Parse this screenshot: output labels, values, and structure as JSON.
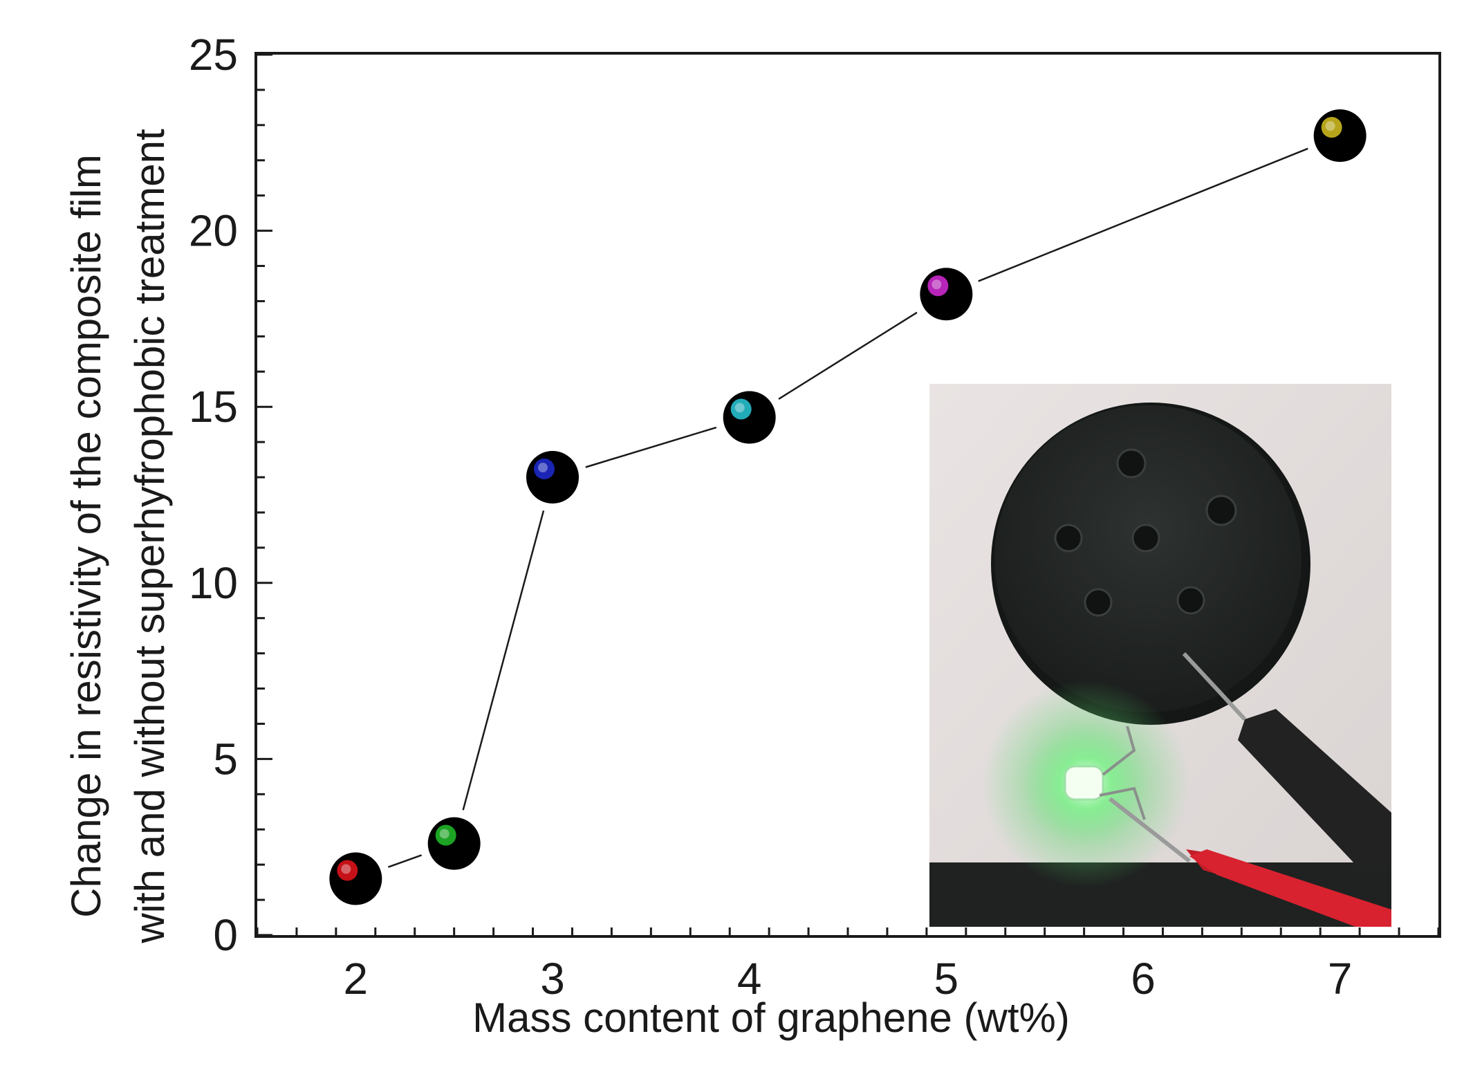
{
  "chart_data": {
    "type": "scatter",
    "connected": true,
    "xlabel": "Mass content of graphene (wt%)",
    "ylabel_lines": [
      "Change in resistivity of the composite film",
      "with and without superhyfrophobic treatment"
    ],
    "xlim": [
      1.5,
      7.5
    ],
    "ylim": [
      0,
      25
    ],
    "xticks": [
      2,
      3,
      4,
      5,
      6,
      7
    ],
    "yticks": [
      0,
      5,
      10,
      15,
      20,
      25
    ],
    "points": [
      {
        "x": 2.0,
        "y": 1.6,
        "highlight": "#e8141b"
      },
      {
        "x": 2.5,
        "y": 2.6,
        "highlight": "#22c02a"
      },
      {
        "x": 3.0,
        "y": 13.0,
        "highlight": "#1f2bd6"
      },
      {
        "x": 4.0,
        "y": 14.7,
        "highlight": "#28c9d8"
      },
      {
        "x": 5.0,
        "y": 18.2,
        "highlight": "#d62ad8"
      },
      {
        "x": 7.0,
        "y": 22.7,
        "highlight": "#d6c21f"
      }
    ],
    "grid": false,
    "inset_photo": "graphene composite film disk with glowing green LED and multimeter probes"
  },
  "colors": {
    "axis": "#1a1a1a",
    "marker": "#000000",
    "line": "#1a1a1a",
    "led_glow": "#6cf07a",
    "probe_red": "#d8222f",
    "probe_black": "#222222"
  }
}
